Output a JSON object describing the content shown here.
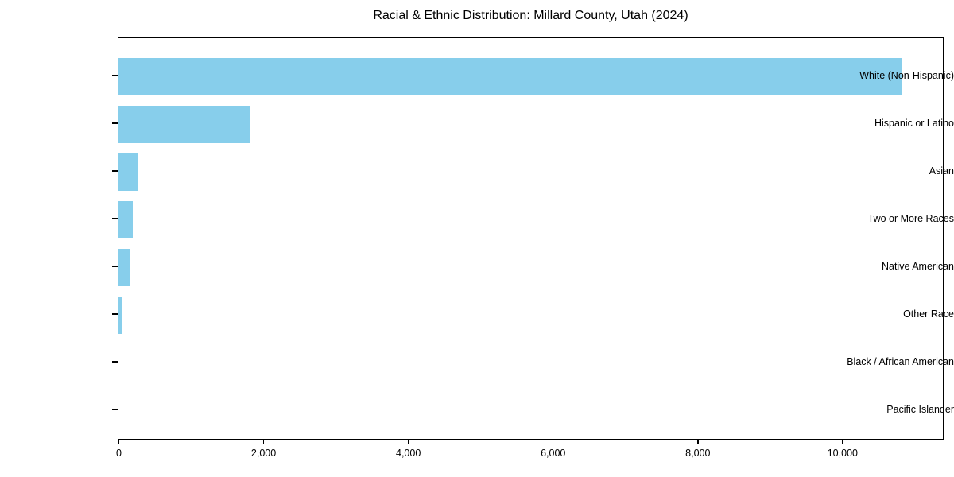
{
  "title": "Racial & Ethnic Distribution: Millard County, Utah (2024)",
  "chart_data": {
    "type": "bar",
    "orientation": "horizontal",
    "title": "Racial & Ethnic Distribution: Millard County, Utah (2024)",
    "categories": [
      "White (Non-Hispanic)",
      "Hispanic or Latino",
      "Asian",
      "Two or More Races",
      "Native American",
      "Other Race",
      "Black / African American",
      "Pacific Islander"
    ],
    "values": [
      10820,
      1810,
      275,
      200,
      155,
      55,
      0,
      0
    ],
    "xlabel": "",
    "ylabel": "",
    "xlim": [
      0,
      11380
    ],
    "x_ticks": [
      0,
      2000,
      4000,
      6000,
      8000,
      10000
    ],
    "x_tick_labels": [
      "0",
      "2,000",
      "4,000",
      "6,000",
      "8,000",
      "10,000"
    ],
    "bar_color": "#87CEEB",
    "frame": "full-box",
    "grid": false,
    "legend": "none"
  }
}
